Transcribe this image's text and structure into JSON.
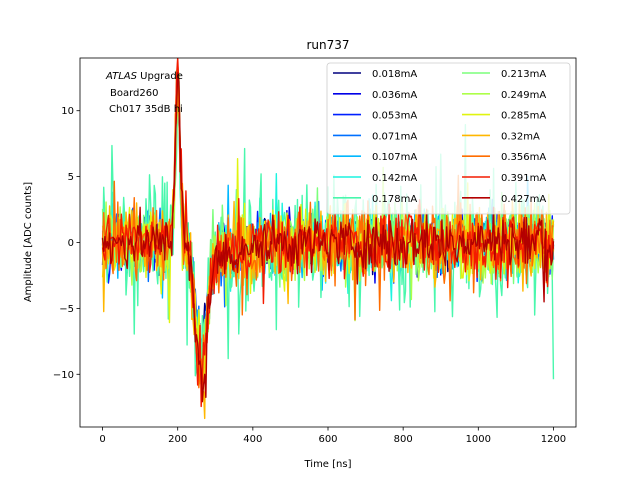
{
  "chart_data": {
    "type": "line",
    "title": "run737",
    "xlabel": "Time [ns]",
    "ylabel": "Amplitude [ADC counts]",
    "xlim": [
      -60,
      1260
    ],
    "ylim": [
      -14,
      14
    ],
    "xticks": [
      0,
      200,
      400,
      600,
      800,
      1000,
      1200
    ],
    "yticks": [
      -10,
      -5,
      0,
      5,
      10
    ],
    "xtick_labels": [
      "0",
      "200",
      "400",
      "600",
      "800",
      "1000",
      "1200"
    ],
    "ytick_labels": [
      "−10",
      "−5",
      "0",
      "5",
      "10"
    ],
    "grid": false,
    "legend_position": "top-right",
    "legend_columns": 2,
    "annotation": {
      "italic": "ATLAS",
      "text1": " Upgrade",
      "text2": "Board260",
      "text3": "Ch017 35dB hi"
    },
    "pulse": {
      "peak_time_ns": 200,
      "peak_value": 13.5,
      "undershoot_time_ns": 260,
      "undershoot_value": -12.5
    },
    "series": [
      {
        "name": "0.018mA",
        "color": "#00007f",
        "noise_amplitude": 2.2
      },
      {
        "name": "0.036mA",
        "color": "#0000e8",
        "noise_amplitude": 2.4
      },
      {
        "name": "0.053mA",
        "color": "#0020ff",
        "noise_amplitude": 2.6
      },
      {
        "name": "0.071mA",
        "color": "#0070ff",
        "noise_amplitude": 2.8
      },
      {
        "name": "0.107mA",
        "color": "#00b8ff",
        "noise_amplitude": 3.0
      },
      {
        "name": "0.142mA",
        "color": "#1cf4e0",
        "noise_amplitude": 3.3
      },
      {
        "name": "0.178mA",
        "color": "#49f7ad",
        "noise_amplitude": 6.5
      },
      {
        "name": "0.213mA",
        "color": "#7bff7b",
        "noise_amplitude": 3.4
      },
      {
        "name": "0.249mA",
        "color": "#adff49",
        "noise_amplitude": 3.4
      },
      {
        "name": "0.285mA",
        "color": "#e0f40f",
        "noise_amplitude": 3.5
      },
      {
        "name": "0.32mA",
        "color": "#ffb700",
        "noise_amplitude": 3.6
      },
      {
        "name": "0.356mA",
        "color": "#ff6d00",
        "noise_amplitude": 3.8
      },
      {
        "name": "0.391mA",
        "color": "#f41b00",
        "noise_amplitude": 3.2
      },
      {
        "name": "0.427mA",
        "color": "#b30000",
        "noise_amplitude": 2.6
      }
    ]
  }
}
